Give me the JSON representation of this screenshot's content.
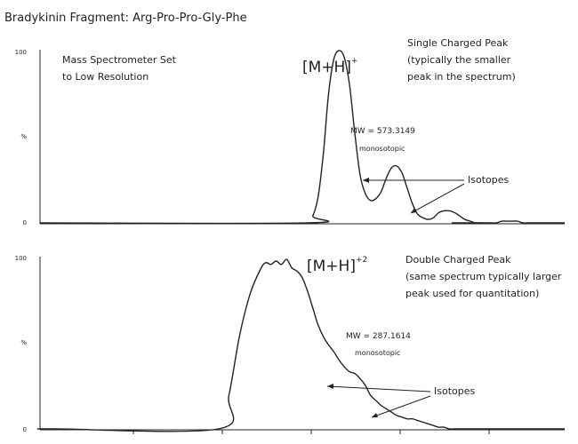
{
  "title": "Bradykinin Fragment: Arg-Pro-Pro-Gly-Phe",
  "chart_data": [
    {
      "type": "line",
      "ylabel": "%",
      "y_ticks": [
        "100",
        "%",
        "0"
      ],
      "ylim": [
        0,
        100
      ],
      "xlim": [
        0,
        100
      ],
      "x": [
        0,
        51,
        52,
        53,
        54,
        55,
        56,
        57,
        58,
        59,
        60,
        61,
        62,
        63,
        64,
        65,
        66,
        67,
        68,
        69,
        70,
        71,
        72,
        73,
        74,
        75,
        76,
        77,
        78,
        79,
        80,
        81,
        82,
        83,
        84,
        85,
        86,
        87,
        88,
        89,
        90,
        91,
        92,
        93,
        94,
        95,
        96,
        100
      ],
      "y": [
        0,
        0,
        4,
        15,
        40,
        75,
        95,
        100,
        96,
        80,
        52,
        28,
        17,
        13,
        14,
        18,
        26,
        32,
        33,
        29,
        20,
        11,
        5,
        3,
        2,
        3,
        6,
        7,
        7,
        6,
        4,
        2,
        1,
        0,
        0,
        0,
        0,
        0,
        1,
        1,
        1,
        1,
        0,
        0,
        0,
        0,
        0,
        0
      ],
      "annotations": {
        "note": "Mass Spectrometer Set\nto Low Resolution",
        "ion": "[M+H]",
        "ion_charge": "+",
        "peak_title": "Single Charged Peak\n(typically the smaller\npeak in the spectrum)",
        "mw": "MW = 573.3149",
        "mono": "monosotopic",
        "isotopes": "Isotopes"
      }
    },
    {
      "type": "line",
      "ylabel": "%",
      "y_ticks": [
        "100",
        "%",
        "0"
      ],
      "ylim": [
        0,
        100
      ],
      "xlim": [
        0,
        100
      ],
      "x": [
        0,
        3,
        34,
        36,
        38,
        40,
        42,
        43,
        44,
        45,
        46,
        47,
        48,
        49,
        50,
        51,
        52,
        53,
        54,
        55,
        56,
        57,
        58,
        59,
        60,
        61,
        62,
        63,
        64,
        65,
        66,
        67,
        68,
        69,
        70,
        71,
        72,
        73,
        74,
        75,
        76,
        77,
        78,
        79,
        80,
        81,
        100
      ],
      "y": [
        0,
        0,
        0,
        20,
        55,
        80,
        95,
        99,
        98,
        100,
        98,
        101,
        96,
        94,
        90,
        82,
        72,
        62,
        55,
        50,
        46,
        41,
        37,
        34,
        33,
        30,
        26,
        20,
        17,
        14,
        12,
        10,
        8,
        7,
        6,
        6,
        5,
        4,
        3,
        2,
        1,
        1,
        0,
        0,
        0,
        0,
        0
      ],
      "annotations": {
        "ion": "[M+H]",
        "ion_charge": "+2",
        "peak_title": "Double Charged Peak\n(same spectrum typically larger\npeak used for quantitation)",
        "mw": "MW = 287.1614",
        "mono": "monosotopic",
        "isotopes": "Isotopes"
      }
    }
  ]
}
